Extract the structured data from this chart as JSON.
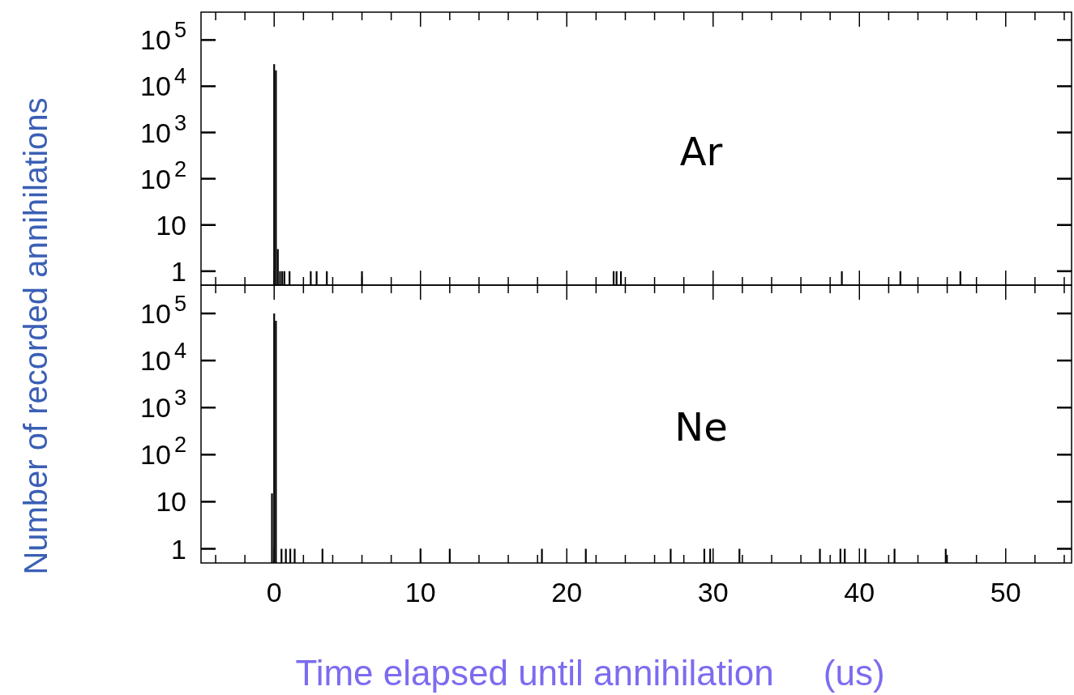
{
  "chart_data": [
    {
      "type": "bar",
      "log": true,
      "tick_labels": "y",
      "ylabel": "Number of recorded annihilations",
      "annotations": [
        "Ar"
      ],
      "xlim": [
        -5,
        54.5
      ],
      "ylim": [
        0.5,
        400000
      ],
      "xticks": [
        {
          "value": -4,
          "label": null
        },
        {
          "value": -2,
          "label": null
        },
        0,
        {
          "value": 2,
          "label": null
        },
        {
          "value": 4,
          "label": null
        },
        {
          "value": 6,
          "label": null
        },
        {
          "value": 8,
          "label": null
        },
        10,
        {
          "value": 12,
          "label": null
        },
        {
          "value": 14,
          "label": null
        },
        {
          "value": 16,
          "label": null
        },
        {
          "value": 18,
          "label": null
        },
        20,
        {
          "value": 22,
          "label": null
        },
        {
          "value": 24,
          "label": null
        },
        {
          "value": 26,
          "label": null
        },
        {
          "value": 28,
          "label": null
        },
        30,
        {
          "value": 32,
          "label": null
        },
        {
          "value": 34,
          "label": null
        },
        {
          "value": 36,
          "label": null
        },
        {
          "value": 38,
          "label": null
        },
        40,
        {
          "value": 42,
          "label": null
        },
        {
          "value": 44,
          "label": null
        },
        {
          "value": 46,
          "label": null
        },
        {
          "value": 48,
          "label": null
        },
        50,
        {
          "value": 52,
          "label": null
        },
        {
          "value": 54,
          "label": null
        }
      ],
      "yticks": [
        {
          "value": 1,
          "label": "1"
        },
        {
          "value": 10,
          "label": "10"
        },
        {
          "value": 100,
          "label": "10$^{2}$"
        },
        {
          "value": 1000,
          "label": "10$^{3}$"
        },
        {
          "value": 10000,
          "label": "10$^{4}$"
        },
        {
          "value": 100000,
          "label": "10$^{5}$"
        }
      ],
      "series": [
        {
          "color": "#000000",
          "x": [
            0,
            0.12,
            0.25,
            0.4,
            0.55,
            0.7,
            1.05,
            2.5,
            2.9,
            3.6,
            6.0,
            23.2,
            23.4,
            23.7,
            38.8,
            42.8,
            46.9
          ],
          "values": [
            30000,
            22000,
            3,
            1,
            1,
            1,
            1,
            1,
            1,
            1,
            1,
            1,
            1,
            1,
            1,
            1,
            1
          ]
        }
      ]
    },
    {
      "type": "bar",
      "log": true,
      "xlabel": "Time elapsed until annihilation     (us)",
      "annotations": [
        "Ne"
      ],
      "xlim": [
        -5,
        54.5
      ],
      "ylim": [
        0.5,
        400000
      ],
      "xticks": [
        {
          "value": -4,
          "label": null
        },
        {
          "value": -2,
          "label": null
        },
        0,
        {
          "value": 2,
          "label": null
        },
        {
          "value": 4,
          "label": null
        },
        {
          "value": 6,
          "label": null
        },
        {
          "value": 8,
          "label": null
        },
        10,
        {
          "value": 12,
          "label": null
        },
        {
          "value": 14,
          "label": null
        },
        {
          "value": 16,
          "label": null
        },
        {
          "value": 18,
          "label": null
        },
        20,
        {
          "value": 22,
          "label": null
        },
        {
          "value": 24,
          "label": null
        },
        {
          "value": 26,
          "label": null
        },
        {
          "value": 28,
          "label": null
        },
        30,
        {
          "value": 32,
          "label": null
        },
        {
          "value": 34,
          "label": null
        },
        {
          "value": 36,
          "label": null
        },
        {
          "value": 38,
          "label": null
        },
        40,
        {
          "value": 42,
          "label": null
        },
        {
          "value": 44,
          "label": null
        },
        {
          "value": 46,
          "label": null
        },
        {
          "value": 48,
          "label": null
        },
        50,
        {
          "value": 52,
          "label": null
        },
        {
          "value": 54,
          "label": null
        }
      ],
      "yticks": [
        {
          "value": 1,
          "label": "1"
        },
        {
          "value": 10,
          "label": "10"
        },
        {
          "value": 100,
          "label": "10$^{2}$"
        },
        {
          "value": 1000,
          "label": "10$^{3}$"
        },
        {
          "value": 10000,
          "label": "10$^{4}$"
        },
        {
          "value": 100000,
          "label": "10$^{5}$"
        }
      ],
      "series": [
        {
          "color": "#000000",
          "x": [
            -0.15,
            0,
            0.12,
            0.5,
            0.8,
            1.1,
            1.4,
            3.3,
            10.0,
            12.0,
            18.3,
            21.3,
            27.1,
            29.4,
            29.8,
            31.8,
            37.3,
            38.7,
            39.0,
            40.4,
            42.4,
            45.9
          ],
          "values": [
            15,
            100000,
            70000,
            1,
            1,
            1,
            1,
            1,
            1,
            1,
            1,
            1,
            1,
            1,
            1,
            1,
            1,
            1,
            1,
            1,
            1,
            1
          ]
        }
      ]
    }
  ]
}
